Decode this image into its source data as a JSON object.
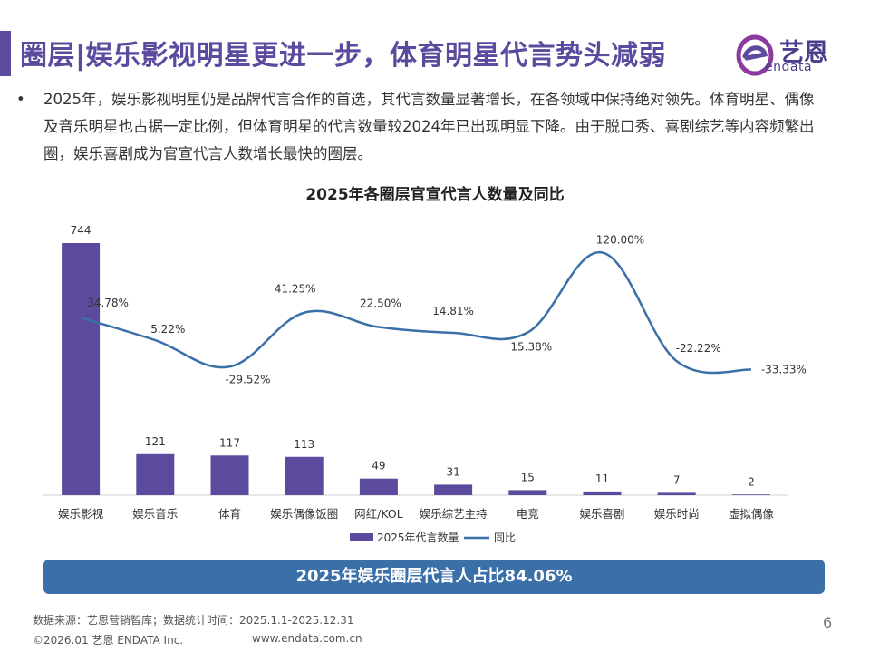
{
  "header": {
    "title": "圈层|娱乐影视明星更进一步，体育明星代言势头减弱",
    "logo_cn": "艺恩",
    "logo_en": "endata"
  },
  "bullet": {
    "marker": "•",
    "text": "2025年，娱乐影视明星仍是品牌代言合作的首选，其代言数量显著增长，在各领域中保持绝对领先。体育明星、偶像及音乐明星也占据一定比例，但体育明星的代言数量较2024年已出现明显下降。由于脱口秀、喜剧综艺等内容频繁出圈，娱乐喜剧成为官宣代言人数增长最快的圈层。"
  },
  "chart_data": {
    "type": "bar",
    "title": "2025年各圈层官宣代言人数量及同比",
    "categories": [
      "娱乐影视",
      "娱乐音乐",
      "体育",
      "娱乐偶像饭圈",
      "网红/KOL",
      "娱乐综艺主持",
      "电竞",
      "娱乐喜剧",
      "娱乐时尚",
      "虚拟偶像"
    ],
    "series": [
      {
        "name": "2025年代言数量",
        "type": "bar",
        "values": [
          744,
          121,
          117,
          113,
          49,
          31,
          15,
          11,
          7,
          2
        ],
        "color": "#5b4a9e"
      },
      {
        "name": "同比",
        "type": "line",
        "values": [
          34.78,
          5.22,
          -29.52,
          41.25,
          22.5,
          14.81,
          15.38,
          120.0,
          -22.22,
          -33.33
        ],
        "labels": [
          "34.78%",
          "5.22%",
          "-29.52%",
          "41.25%",
          "22.50%",
          "14.81%",
          "15.38%",
          "120.00%",
          "-22.22%",
          "-33.33%"
        ],
        "color": "#3a6fa8"
      }
    ],
    "bar_ylim": [
      0,
      800
    ],
    "line_ylim": [
      -60,
      130
    ],
    "legend_position": "bottom-center",
    "grid": false
  },
  "summary": {
    "text": "2025年娱乐圈层代言人占比84.06%",
    "color": "#3a6fa8"
  },
  "footer": {
    "source": "数据来源：艺恩营销智库；数据统计时间：2025.1.1-2025.12.31",
    "copyright": "©2026.01 艺恩 ENDATA Inc.",
    "url": "www.endata.com.cn",
    "page_number": "6"
  },
  "colors": {
    "accent": "#5b4a9e",
    "line": "#3a6fa8"
  }
}
